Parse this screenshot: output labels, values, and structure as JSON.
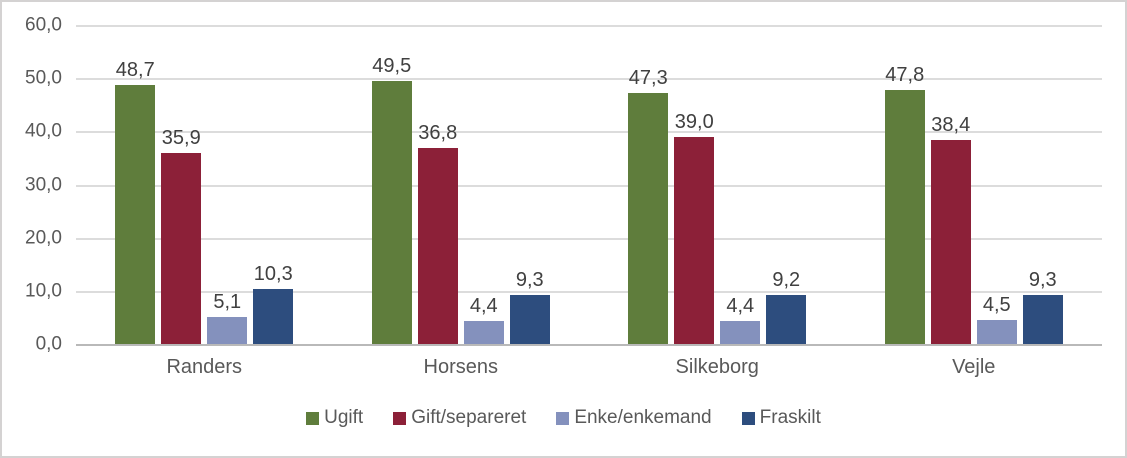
{
  "chart_data": {
    "type": "bar",
    "title": "",
    "categories": [
      "Randers",
      "Horsens",
      "Silkeborg",
      "Vejle"
    ],
    "series": [
      {
        "name": "Ugift",
        "color": "#5F7D3C",
        "values": [
          48.7,
          49.5,
          47.3,
          47.8
        ],
        "labels": [
          "48,7",
          "49,5",
          "47,3",
          "47,8"
        ]
      },
      {
        "name": "Gift/separeret",
        "color": "#8C2038",
        "values": [
          35.9,
          36.8,
          39.0,
          38.4
        ],
        "labels": [
          "35,9",
          "36,8",
          "39,0",
          "38,4"
        ]
      },
      {
        "name": "Enke/enkemand",
        "color": "#8491BD",
        "values": [
          5.1,
          4.4,
          4.4,
          4.5
        ],
        "labels": [
          "5,1",
          "4,4",
          "4,4",
          "4,5"
        ]
      },
      {
        "name": "Fraskilt",
        "color": "#2D4D7E",
        "values": [
          10.3,
          9.3,
          9.2,
          9.3
        ],
        "labels": [
          "10,3",
          "9,3",
          "9,2",
          "9,3"
        ]
      }
    ],
    "y_axis": {
      "min": 0,
      "max": 60,
      "step": 10,
      "tick_labels": [
        "60,0",
        "50,0",
        "40,0",
        "30,0",
        "20,0",
        "10,0",
        "0,0"
      ]
    },
    "legend": {
      "position": "bottom",
      "entries": [
        "Ugift",
        "Gift/separeret",
        "Enke/enkemand",
        "Fraskilt"
      ]
    },
    "grid": true,
    "colors": {
      "gridline": "#DCDCDC",
      "axis_line": "#B9B9B9",
      "tick_text": "#595959",
      "data_label_text": "#404040",
      "frame_border": "#D4D2D2",
      "background": "#FFFFFF"
    }
  }
}
